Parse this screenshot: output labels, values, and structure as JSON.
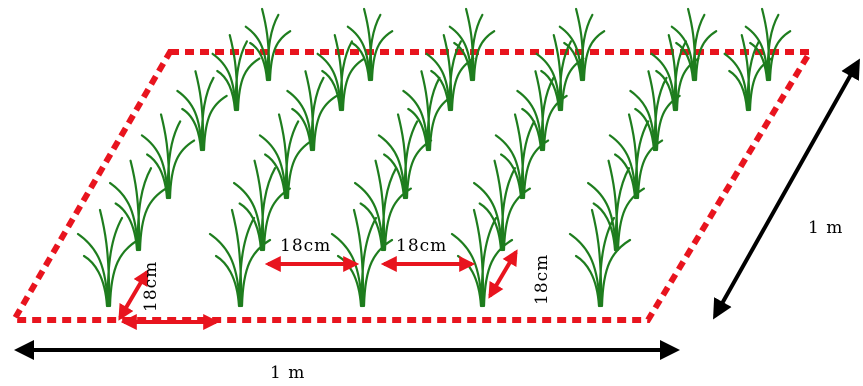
{
  "diagram": {
    "plant_color": "#1e7d1e",
    "border_color": "#e8141e",
    "arrow_red": "#e8141e",
    "arrow_black": "#000000",
    "labels": {
      "width": "1 m",
      "depth": "1 m",
      "spacing_1": "18cm",
      "spacing_2": "18cm",
      "spacing_left_vertical": "18cm",
      "spacing_right_vertical": "18cm"
    }
  }
}
